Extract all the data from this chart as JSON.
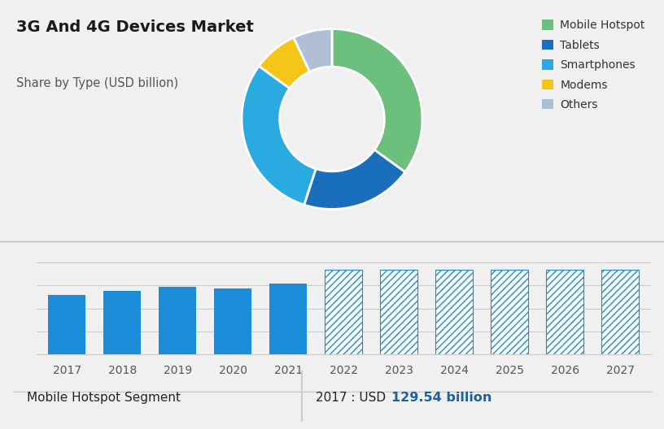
{
  "title": "3G And 4G Devices Market",
  "subtitle": "Share by Type (USD billion)",
  "pie_labels": [
    "Mobile Hotspot",
    "Tablets",
    "Smartphones",
    "Modems",
    "Others"
  ],
  "pie_values": [
    35,
    20,
    30,
    8,
    7
  ],
  "pie_colors": [
    "#6dbf7e",
    "#1a6fbd",
    "#29abe2",
    "#f5c518",
    "#b0bfd6"
  ],
  "bar_years": [
    2017,
    2018,
    2019,
    2020,
    2021,
    2022,
    2023,
    2024,
    2025,
    2026,
    2027
  ],
  "bar_solid_values": [
    129.54,
    138,
    148,
    143,
    155,
    0,
    0,
    0,
    0,
    0,
    0
  ],
  "bar_hatched_values": [
    0,
    0,
    0,
    0,
    0,
    185,
    185,
    185,
    185,
    185,
    185
  ],
  "bar_color_solid": "#1a8cd8",
  "bar_hatch_edgecolor": "#1a8cd8",
  "top_bg_color": "#ccd5df",
  "bottom_bg_color": "#f0f0f0",
  "footer_label_left": "Mobile Hotspot Segment",
  "footer_label_right": "2017 : USD ",
  "footer_value": "129.54 billion",
  "grid_color": "#cccccc",
  "axis_label_color": "#555555",
  "ylim": [
    0,
    240
  ],
  "split_idx": 5
}
